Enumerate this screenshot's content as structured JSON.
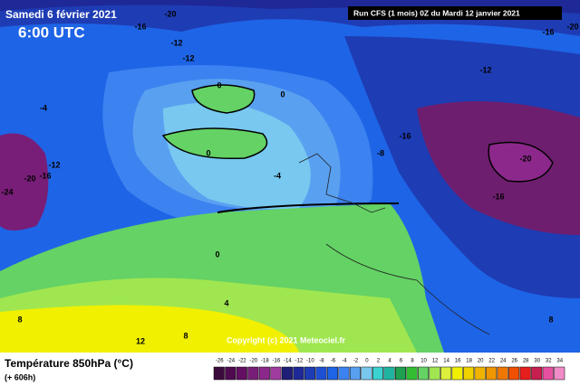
{
  "header": {
    "date": "Samedi 6 février 2021",
    "time": "6:00 UTC",
    "run": "Run CFS (1 mois) 0Z du Mardi 12 janvier 2021"
  },
  "footer": {
    "title": "Température 850hPa (°C)",
    "lead": "(+ 606h)",
    "copyright": "Copyright (c) 2021 Meteociel.fr"
  },
  "scale": {
    "ticks": [
      -26,
      -24,
      -22,
      -20,
      -18,
      -16,
      -14,
      -12,
      -10,
      -8,
      -6,
      -4,
      -2,
      0,
      2,
      4,
      6,
      8,
      10,
      12,
      14,
      16,
      18,
      20,
      22,
      24,
      26,
      28,
      30,
      32,
      34
    ],
    "colors": [
      "#3c0a3c",
      "#500a50",
      "#640f64",
      "#781e78",
      "#8c288c",
      "#a03ca0",
      "#1e1e78",
      "#1e2896",
      "#1e3cb4",
      "#1e50d2",
      "#1e64e6",
      "#3c82f0",
      "#5aa0f0",
      "#78c8f0",
      "#3cd2d2",
      "#1eb4a0",
      "#1ea050",
      "#32be32",
      "#64d264",
      "#a0e650",
      "#dcf03c",
      "#f0f000",
      "#f0d200",
      "#f0b400",
      "#f09600",
      "#f07800",
      "#f05000",
      "#e61e1e",
      "#c81e50",
      "#e650a0",
      "#f08cc8"
    ]
  },
  "contour_labels": [
    "-20",
    "-16",
    "-12",
    "-12",
    "0",
    "0",
    "-4",
    "0",
    "-4",
    "-8",
    "-12",
    "-20",
    "-16",
    "-24",
    "-12",
    "-16",
    "-20",
    "-16",
    "-16",
    "-20",
    "0",
    "4",
    "8",
    "12",
    "8",
    "8"
  ]
}
